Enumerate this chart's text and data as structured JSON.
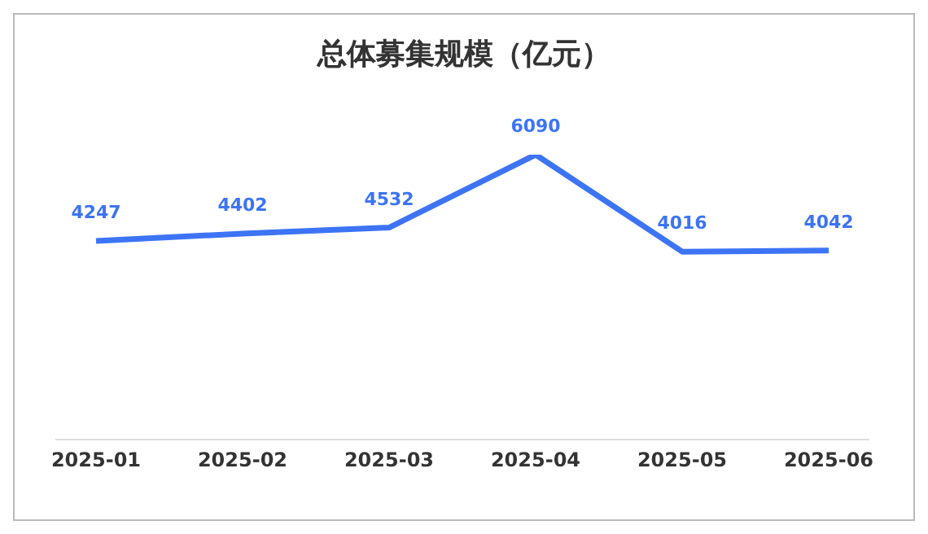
{
  "chart_data": {
    "type": "line",
    "title": "总体募集规模（亿元）",
    "categories": [
      "2025-01",
      "2025-02",
      "2025-03",
      "2025-04",
      "2025-05",
      "2025-06"
    ],
    "series": [
      {
        "color": "#3d74f5",
        "values": [
          4247,
          4402,
          4532,
          6090,
          4016,
          4042
        ]
      }
    ],
    "tick_labels": "x",
    "data_labels": true,
    "marker": "none",
    "line_style": "solid"
  }
}
